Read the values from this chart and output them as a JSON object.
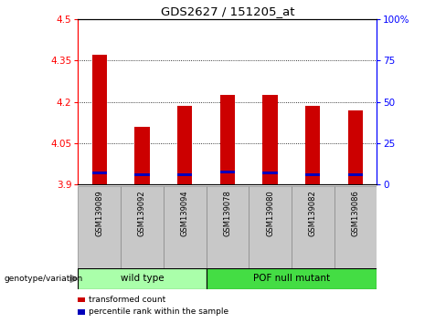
{
  "title": "GDS2627 / 151205_at",
  "samples": [
    "GSM139089",
    "GSM139092",
    "GSM139094",
    "GSM139078",
    "GSM139080",
    "GSM139082",
    "GSM139086"
  ],
  "transformed_counts": [
    4.37,
    4.11,
    4.185,
    4.225,
    4.225,
    4.185,
    4.17
  ],
  "percentile_positions": [
    3.935,
    3.93,
    3.93,
    3.94,
    3.935,
    3.93,
    3.93
  ],
  "y_min": 3.9,
  "y_max": 4.5,
  "y_ticks": [
    3.9,
    4.05,
    4.2,
    4.35,
    4.5
  ],
  "y_tick_labels": [
    "3.9",
    "4.05",
    "4.2",
    "4.35",
    "4.5"
  ],
  "right_y_ticks_pct": [
    0,
    25,
    50,
    75,
    100
  ],
  "right_y_labels": [
    "0",
    "25",
    "50",
    "75",
    "100%"
  ],
  "groups": [
    {
      "label": "wild type",
      "indices": [
        0,
        1,
        2
      ],
      "color": "#AAFFAA"
    },
    {
      "label": "POF null mutant",
      "indices": [
        3,
        4,
        5,
        6
      ],
      "color": "#44DD44"
    }
  ],
  "bar_color": "#CC0000",
  "percentile_color": "#0000BB",
  "bar_width": 0.35,
  "legend_items": [
    {
      "color": "#CC0000",
      "label": "transformed count"
    },
    {
      "color": "#0000BB",
      "label": "percentile rank within the sample"
    }
  ],
  "genotype_label": "genotype/variation",
  "xlabel_area_color": "#C8C8C8"
}
